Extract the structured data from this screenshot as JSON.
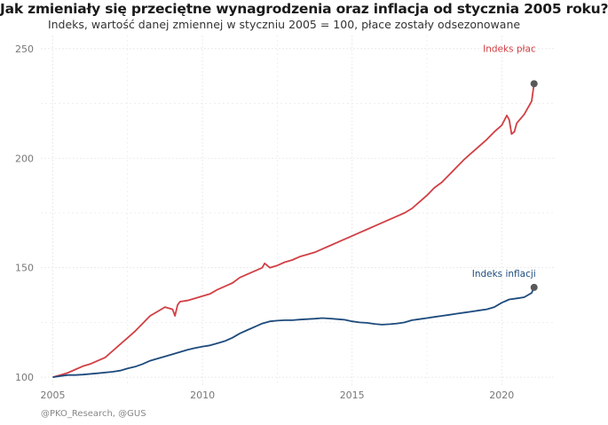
{
  "header": {
    "title": "Jak zmieniały się przeciętne wynagrodzenia oraz inflacja od stycznia 2005 roku?",
    "subtitle": "Indeks, wartość danej zmiennej w styczniu 2005 = 100, płace zostały odsezonowane"
  },
  "footer": {
    "source": "@PKO_Research,  @GUS"
  },
  "colors": {
    "wages": "#d13f44",
    "inflation": "#1d4a7c",
    "endpoint": "#595959",
    "grid": "#e6e6e6"
  },
  "chart_data": {
    "type": "line",
    "title": "Jak zmieniały się przeciętne wynagrodzenia oraz inflacja od stycznia 2005 roku?",
    "subtitle": "Indeks, wartość danej zmiennej w styczniu 2005 = 100, płace zostały odsezonowane",
    "xlabel": "",
    "ylabel": "",
    "xlim": [
      2004.6,
      2021.8
    ],
    "ylim": [
      96,
      256
    ],
    "xticks": [
      2005,
      2010,
      2015,
      2020
    ],
    "yticks": [
      100,
      150,
      200,
      250
    ],
    "grid": true,
    "legend": "direct labels at line ends",
    "series": [
      {
        "name": "Indeks płac",
        "color": "#d13f44",
        "x": [
          2005.0,
          2005.25,
          2005.5,
          2005.75,
          2006.0,
          2006.25,
          2006.5,
          2006.75,
          2007.0,
          2007.25,
          2007.5,
          2007.75,
          2008.0,
          2008.25,
          2008.5,
          2008.75,
          2009.0,
          2009.08,
          2009.17,
          2009.25,
          2009.5,
          2009.75,
          2010.0,
          2010.25,
          2010.5,
          2010.75,
          2011.0,
          2011.25,
          2011.5,
          2011.75,
          2012.0,
          2012.08,
          2012.25,
          2012.5,
          2012.75,
          2013.0,
          2013.25,
          2013.5,
          2013.75,
          2014.0,
          2014.25,
          2014.5,
          2014.75,
          2015.0,
          2015.25,
          2015.5,
          2015.75,
          2016.0,
          2016.25,
          2016.5,
          2016.75,
          2017.0,
          2017.25,
          2017.5,
          2017.75,
          2018.0,
          2018.25,
          2018.5,
          2018.75,
          2019.0,
          2019.25,
          2019.5,
          2019.75,
          2020.0,
          2020.17,
          2020.25,
          2020.33,
          2020.42,
          2020.5,
          2020.75,
          2021.0,
          2021.08
        ],
        "values": [
          100.0,
          101.0,
          102.0,
          103.5,
          105.0,
          106.0,
          107.5,
          109.0,
          112.0,
          115.0,
          118.0,
          121.0,
          124.5,
          128.0,
          130.0,
          132.0,
          131.0,
          128.0,
          133.0,
          134.5,
          135.0,
          136.0,
          137.0,
          138.0,
          140.0,
          141.5,
          143.0,
          145.5,
          147.0,
          148.5,
          150.0,
          152.0,
          150.0,
          151.0,
          152.5,
          153.5,
          155.0,
          156.0,
          157.0,
          158.5,
          160.0,
          161.5,
          163.0,
          164.5,
          166.0,
          167.5,
          169.0,
          170.5,
          172.0,
          173.5,
          175.0,
          177.0,
          180.0,
          183.0,
          186.5,
          189.0,
          192.5,
          196.0,
          199.5,
          202.5,
          205.5,
          208.5,
          212.0,
          215.0,
          219.5,
          217.5,
          211.0,
          212.0,
          216.0,
          220.0,
          226.0,
          234.0
        ]
      },
      {
        "name": "Indeks inflacji",
        "color": "#1d4a7c",
        "x": [
          2005.0,
          2005.25,
          2005.5,
          2005.75,
          2006.0,
          2006.5,
          2007.0,
          2007.25,
          2007.5,
          2007.75,
          2008.0,
          2008.25,
          2008.5,
          2008.75,
          2009.0,
          2009.25,
          2009.5,
          2009.75,
          2010.0,
          2010.25,
          2010.5,
          2010.75,
          2011.0,
          2011.25,
          2011.5,
          2011.75,
          2012.0,
          2012.25,
          2012.5,
          2012.75,
          2013.0,
          2013.25,
          2013.5,
          2013.75,
          2014.0,
          2014.25,
          2014.5,
          2014.75,
          2015.0,
          2015.25,
          2015.5,
          2015.75,
          2016.0,
          2016.25,
          2016.5,
          2016.75,
          2017.0,
          2017.25,
          2017.5,
          2017.75,
          2018.0,
          2018.25,
          2018.5,
          2018.75,
          2019.0,
          2019.25,
          2019.5,
          2019.75,
          2020.0,
          2020.25,
          2020.5,
          2020.75,
          2021.0,
          2021.08
        ],
        "values": [
          100.0,
          100.5,
          101.0,
          101.0,
          101.2,
          101.8,
          102.5,
          103.0,
          104.0,
          104.8,
          106.0,
          107.5,
          108.5,
          109.5,
          110.5,
          111.5,
          112.5,
          113.3,
          114.0,
          114.5,
          115.5,
          116.5,
          118.0,
          120.0,
          121.5,
          123.0,
          124.5,
          125.5,
          125.8,
          126.0,
          126.0,
          126.3,
          126.5,
          126.7,
          127.0,
          126.8,
          126.5,
          126.2,
          125.5,
          125.0,
          124.8,
          124.3,
          124.0,
          124.2,
          124.5,
          125.0,
          126.0,
          126.5,
          127.0,
          127.5,
          128.0,
          128.5,
          129.0,
          129.5,
          130.0,
          130.5,
          131.0,
          132.0,
          134.0,
          135.5,
          136.0,
          136.5,
          138.5,
          141.0
        ]
      }
    ]
  }
}
